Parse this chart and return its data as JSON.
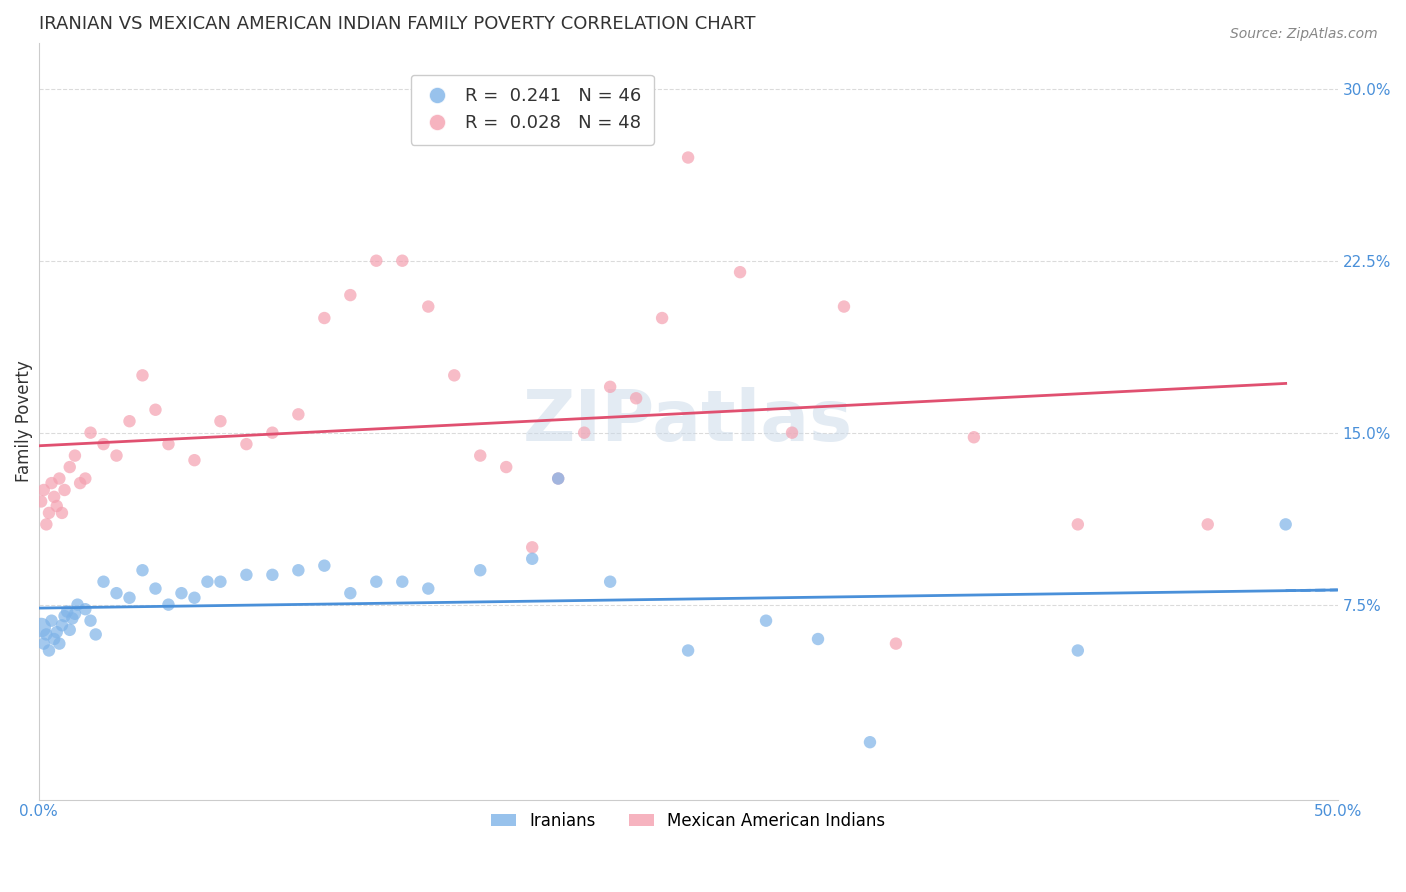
{
  "title": "IRANIAN VS MEXICAN AMERICAN INDIAN FAMILY POVERTY CORRELATION CHART",
  "source": "Source: ZipAtlas.com",
  "xlabel": "",
  "ylabel": "Family Poverty",
  "xlim": [
    0.0,
    0.5
  ],
  "ylim": [
    -0.01,
    0.32
  ],
  "xticks": [
    0.0,
    0.1,
    0.2,
    0.3,
    0.4,
    0.5
  ],
  "xticklabels": [
    "0.0%",
    "",
    "",
    "",
    "",
    "50.0%"
  ],
  "yticks": [
    0.075,
    0.15,
    0.225,
    0.3
  ],
  "yticklabels": [
    "7.5%",
    "15.0%",
    "22.5%",
    "30.0%"
  ],
  "legend_r1": "R =  0.241   N = 46",
  "legend_r2": "R =  0.028   N = 48",
  "legend_label1": "Iranians",
  "legend_label2": "Mexican American Indians",
  "blue_color": "#7EB3E8",
  "pink_color": "#F4A0B0",
  "trendline_blue": "#4A90D9",
  "trendline_pink": "#E05070",
  "watermark": "ZIPatlas",
  "iranians_x": [
    0.001,
    0.002,
    0.003,
    0.004,
    0.005,
    0.006,
    0.007,
    0.008,
    0.009,
    0.01,
    0.011,
    0.012,
    0.013,
    0.014,
    0.015,
    0.018,
    0.02,
    0.022,
    0.025,
    0.03,
    0.035,
    0.04,
    0.045,
    0.05,
    0.055,
    0.06,
    0.065,
    0.07,
    0.08,
    0.09,
    0.1,
    0.11,
    0.12,
    0.13,
    0.14,
    0.15,
    0.17,
    0.19,
    0.2,
    0.22,
    0.25,
    0.28,
    0.3,
    0.32,
    0.4,
    0.48
  ],
  "iranians_y": [
    0.065,
    0.058,
    0.062,
    0.055,
    0.068,
    0.06,
    0.063,
    0.058,
    0.066,
    0.07,
    0.072,
    0.064,
    0.069,
    0.071,
    0.075,
    0.073,
    0.068,
    0.062,
    0.085,
    0.08,
    0.078,
    0.09,
    0.082,
    0.075,
    0.08,
    0.078,
    0.085,
    0.085,
    0.088,
    0.088,
    0.09,
    0.092,
    0.08,
    0.085,
    0.085,
    0.082,
    0.09,
    0.095,
    0.13,
    0.085,
    0.055,
    0.068,
    0.06,
    0.015,
    0.055,
    0.11
  ],
  "iranians_sizes": [
    40,
    35,
    30,
    30,
    30,
    30,
    30,
    30,
    30,
    30,
    30,
    30,
    30,
    30,
    30,
    30,
    30,
    30,
    30,
    30,
    30,
    30,
    30,
    30,
    30,
    30,
    30,
    30,
    30,
    30,
    30,
    30,
    30,
    30,
    30,
    30,
    30,
    30,
    30,
    30,
    30,
    30,
    30,
    30,
    30,
    30
  ],
  "mexican_x": [
    0.001,
    0.002,
    0.003,
    0.004,
    0.005,
    0.006,
    0.007,
    0.008,
    0.009,
    0.01,
    0.012,
    0.014,
    0.016,
    0.018,
    0.02,
    0.025,
    0.03,
    0.035,
    0.04,
    0.045,
    0.05,
    0.06,
    0.07,
    0.08,
    0.09,
    0.1,
    0.11,
    0.12,
    0.13,
    0.14,
    0.15,
    0.16,
    0.17,
    0.18,
    0.19,
    0.2,
    0.21,
    0.22,
    0.23,
    0.24,
    0.25,
    0.27,
    0.29,
    0.31,
    0.33,
    0.36,
    0.4,
    0.45
  ],
  "mexican_y": [
    0.12,
    0.125,
    0.11,
    0.115,
    0.128,
    0.122,
    0.118,
    0.13,
    0.115,
    0.125,
    0.135,
    0.14,
    0.128,
    0.13,
    0.15,
    0.145,
    0.14,
    0.155,
    0.175,
    0.16,
    0.145,
    0.138,
    0.155,
    0.145,
    0.15,
    0.158,
    0.2,
    0.21,
    0.225,
    0.225,
    0.205,
    0.175,
    0.14,
    0.135,
    0.1,
    0.13,
    0.15,
    0.17,
    0.165,
    0.2,
    0.27,
    0.22,
    0.15,
    0.205,
    0.058,
    0.148,
    0.11,
    0.11
  ]
}
